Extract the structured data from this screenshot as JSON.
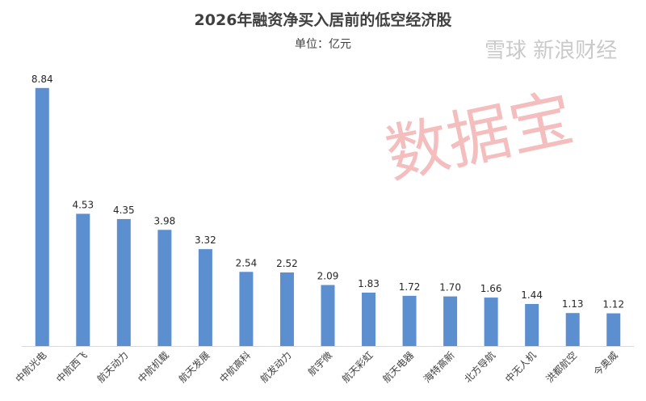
{
  "chart_data": {
    "type": "bar",
    "title": "2026年融资净买入居前的低空经济股",
    "subtitle": "单位：亿元",
    "categories": [
      "中航光电",
      "中航西飞",
      "航天动力",
      "中航机载",
      "航天发展",
      "中航高科",
      "航发动力",
      "航宇微",
      "航天彩虹",
      "航天电器",
      "海特高新",
      "北方导航",
      "中无人机",
      "洪都航空",
      "今奥威"
    ],
    "values": [
      8.84,
      4.53,
      4.35,
      3.98,
      3.32,
      2.54,
      2.52,
      2.09,
      1.83,
      1.72,
      1.7,
      1.66,
      1.44,
      1.13,
      1.12
    ],
    "value_labels": [
      "8.84",
      "4.53",
      "4.35",
      "3.98",
      "3.32",
      "2.54",
      "2.52",
      "2.09",
      "1.83",
      "1.72",
      "1.70",
      "1.66",
      "1.44",
      "1.13",
      "1.12"
    ],
    "ylim": [
      0,
      9.5
    ],
    "grid": false,
    "bar_color": "#5b8fd0"
  },
  "watermark": "数据宝",
  "watermark2": "雪球 新浪财经"
}
